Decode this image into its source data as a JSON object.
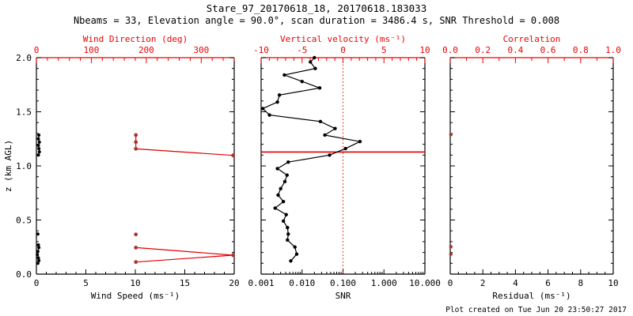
{
  "header": {
    "title": "Stare_97_20170618_18, 20170618.183033",
    "subtitle": "Nbeams = 33, Elevation angle = 90.0°, scan duration = 3486.4 s, SNR Threshold = 0.008"
  },
  "footer": {
    "created": "Plot created on Tue Jun 20 23:50:27 2017"
  },
  "colors": {
    "background": "#ffffff",
    "ink": "#000000",
    "axis_accent": "#ee0000",
    "series_line_red": "#e00000",
    "marker_red": "#a93530"
  },
  "y_axis": {
    "label": "z (km AGL)",
    "min": 0,
    "max": 2,
    "majors": [
      0,
      0.5,
      1,
      1.5,
      2
    ],
    "labels": [
      "0.0",
      "0.5",
      "1.0",
      "1.5",
      "2.0"
    ],
    "minor_step": 0.1
  },
  "chart_data": [
    {
      "type": "scatter",
      "name": "wind-panel",
      "bottom_axis": {
        "label": "Wind Speed (ms⁻¹)",
        "scale": "linear",
        "min": 0,
        "max": 20,
        "majors": [
          0,
          5,
          10,
          15,
          20
        ],
        "labels": [
          "0",
          "5",
          "10",
          "15",
          "20"
        ],
        "minor_step": 1,
        "color": "ink"
      },
      "top_axis": {
        "label": "Wind Direction (deg)",
        "scale": "linear",
        "min": 0,
        "max": 360,
        "majors": [
          0,
          100,
          200,
          300
        ],
        "labels": [
          "0",
          "100",
          "200",
          "300"
        ],
        "minor_step": 20,
        "color": "axis_accent"
      },
      "series": [
        {
          "name": "wind-speed-profile",
          "axis": "bottom",
          "marker_color": "ink",
          "line_color": "ink",
          "line": true,
          "marker_r": 2,
          "segments": [
            [
              [
                0.25,
                1.285
              ],
              [
                0.2,
                1.25
              ],
              [
                0.3,
                1.22
              ],
              [
                0.2,
                1.19
              ],
              [
                0.25,
                1.16
              ],
              [
                0.3,
                1.13
              ],
              [
                0.2,
                1.1
              ]
            ],
            [
              [
                0.15,
                0.37
              ]
            ],
            [
              [
                0.2,
                0.27
              ],
              [
                0.25,
                0.245
              ],
              [
                0.15,
                0.21
              ],
              [
                0.1,
                0.18
              ],
              [
                0.2,
                0.15
              ],
              [
                0.25,
                0.125
              ],
              [
                0.15,
                0.1
              ]
            ]
          ]
        },
        {
          "name": "wind-direction-profile",
          "axis": "top",
          "marker_color": "marker_red",
          "line_color": "series_line_red",
          "line": true,
          "marker_r": 2.4,
          "segments": [
            [
              [
                181,
                1.285
              ],
              [
                181,
                1.22
              ],
              [
                181,
                1.158
              ],
              [
                358,
                1.097
              ]
            ],
            [
              [
                181,
                0.245
              ],
              [
                358,
                0.175
              ],
              [
                181,
                0.112
              ]
            ],
            [
              [
                181,
                0.367
              ]
            ]
          ]
        }
      ],
      "annotations": []
    },
    {
      "type": "line",
      "name": "snr-panel",
      "bottom_axis": {
        "label": "SNR",
        "scale": "log",
        "min": 0.001,
        "max": 10,
        "majors": [
          0.001,
          0.01,
          0.1,
          1,
          10
        ],
        "labels": [
          "0.001",
          "0.010",
          "0.100",
          "1.000",
          "10.000"
        ],
        "color": "ink"
      },
      "top_axis": {
        "label": "Vertical velocity (ms⁻¹)",
        "scale": "linear",
        "min": -10,
        "max": 10,
        "majors": [
          -10,
          -5,
          0,
          5,
          10
        ],
        "labels": [
          "-10",
          "-5",
          "0",
          "5",
          "10"
        ],
        "minor_step": 1,
        "color": "axis_accent"
      },
      "series": [
        {
          "name": "snr-profile",
          "axis": "bottom",
          "marker_color": "ink",
          "line_color": "ink",
          "line": true,
          "marker_r": 2.2,
          "segments": [
            [
              [
                0.02,
                2.0
              ],
              [
                0.016,
                1.96
              ],
              [
                0.021,
                1.9
              ],
              [
                0.0037,
                1.84
              ],
              [
                0.01,
                1.78
              ],
              [
                0.027,
                1.72
              ],
              [
                0.0028,
                1.655
              ],
              [
                0.0025,
                1.59
              ],
              [
                0.0011,
                1.53
              ],
              [
                0.0016,
                1.47
              ],
              [
                0.028,
                1.41
              ],
              [
                0.064,
                1.345
              ],
              [
                0.036,
                1.285
              ],
              [
                0.26,
                1.225
              ],
              [
                0.115,
                1.16
              ],
              [
                0.047,
                1.1
              ],
              [
                0.0046,
                1.035
              ],
              [
                0.0025,
                0.975
              ],
              [
                0.0043,
                0.915
              ],
              [
                0.0038,
                0.855
              ],
              [
                0.003,
                0.79
              ],
              [
                0.0026,
                0.73
              ],
              [
                0.0035,
                0.67
              ],
              [
                0.0022,
                0.61
              ],
              [
                0.0041,
                0.55
              ],
              [
                0.0035,
                0.49
              ],
              [
                0.0044,
                0.43
              ],
              [
                0.0046,
                0.37
              ],
              [
                0.0044,
                0.315
              ],
              [
                0.0067,
                0.25
              ],
              [
                0.0074,
                0.185
              ],
              [
                0.0053,
                0.122
              ]
            ]
          ]
        }
      ],
      "annotations": [
        {
          "type": "hline",
          "z": 1.128,
          "color": "series_line_red",
          "width": 1.6,
          "name": "max-height-marker-line"
        },
        {
          "type": "vline-dotted",
          "axis": "top",
          "x": 0,
          "color": "series_line_red",
          "width": 1,
          "name": "zero-velocity-reference-line"
        }
      ]
    },
    {
      "type": "scatter",
      "name": "residual-panel",
      "bottom_axis": {
        "label": "Residual (ms⁻¹)",
        "scale": "linear",
        "min": 0,
        "max": 10,
        "majors": [
          0,
          2,
          4,
          6,
          8,
          10
        ],
        "labels": [
          "0",
          "2",
          "4",
          "6",
          "8",
          "10"
        ],
        "minor_step": 0.5,
        "color": "ink"
      },
      "top_axis": {
        "label": "Correlation",
        "scale": "linear",
        "min": 0,
        "max": 1,
        "majors": [
          0,
          0.2,
          0.4,
          0.6,
          0.8,
          1.0
        ],
        "labels": [
          "0.0",
          "0.2",
          "0.4",
          "0.6",
          "0.8",
          "1.0"
        ],
        "minor_step": 0.1,
        "color": "axis_accent"
      },
      "series": [
        {
          "name": "correlation-points",
          "axis": "top",
          "marker_color": "marker_red",
          "line_color": "series_line_red",
          "line": false,
          "marker_r": 2.2,
          "segments": [
            [
              [
                0.004,
                1.29
              ]
            ],
            [
              [
                0.004,
                0.253
              ]
            ],
            [
              [
                0.004,
                0.185
              ]
            ]
          ]
        }
      ],
      "annotations": []
    }
  ]
}
